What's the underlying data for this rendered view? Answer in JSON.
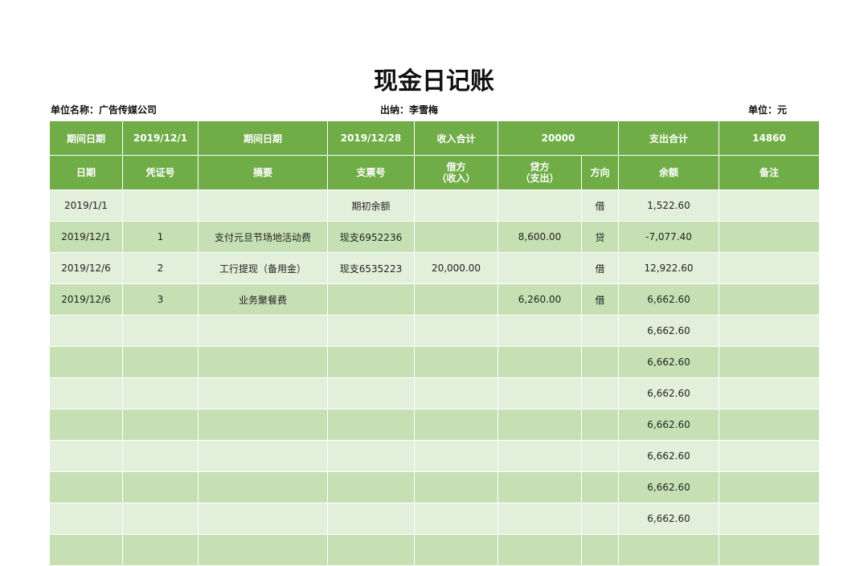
{
  "title": "现金日记账",
  "meta": {
    "company": "单位名称：广告传媒公司",
    "cashier": "出纳：李雪梅",
    "unit": "单位：元"
  },
  "summary": {
    "period_label_1": "期间日期",
    "period_start": "2019/12/1",
    "period_label_2": "期间日期",
    "period_end": "2019/12/28",
    "income_label": "收入合计",
    "income_total": "20000",
    "expense_label": "支出合计",
    "expense_total": "14860"
  },
  "columns": {
    "date": "日期",
    "voucher": "凭证号",
    "summary": "摘要",
    "cheque": "支票号",
    "debit": "借方",
    "debit_sub": "（收入）",
    "credit": "贷方",
    "credit_sub": "（支出）",
    "direction": "方向",
    "balance": "余额",
    "remark": "备注"
  },
  "colors": {
    "header": "#70ad47",
    "row_light": "#e2efda",
    "row_dark": "#c6e0b4"
  },
  "rows": [
    [
      "2019/1/1",
      "",
      "",
      "期初余额",
      "",
      "",
      "借",
      "1,522.60",
      ""
    ],
    [
      "2019/12/1",
      "1",
      "支付元旦节场地活动费",
      "现支6952236",
      "",
      "8,600.00",
      "贷",
      "-7,077.40",
      ""
    ],
    [
      "2019/12/6",
      "2",
      "工行提现（备用金）",
      "现支6535223",
      "20,000.00",
      "",
      "借",
      "12,922.60",
      ""
    ],
    [
      "2019/12/6",
      "3",
      "业务聚餐费",
      "",
      "",
      "6,260.00",
      "借",
      "6,662.60",
      ""
    ],
    [
      "",
      "",
      "",
      "",
      "",
      "",
      "",
      "6,662.60",
      ""
    ],
    [
      "",
      "",
      "",
      "",
      "",
      "",
      "",
      "6,662.60",
      ""
    ],
    [
      "",
      "",
      "",
      "",
      "",
      "",
      "",
      "6,662.60",
      ""
    ],
    [
      "",
      "",
      "",
      "",
      "",
      "",
      "",
      "6,662.60",
      ""
    ],
    [
      "",
      "",
      "",
      "",
      "",
      "",
      "",
      "6,662.60",
      ""
    ],
    [
      "",
      "",
      "",
      "",
      "",
      "",
      "",
      "6,662.60",
      ""
    ],
    [
      "",
      "",
      "",
      "",
      "",
      "",
      "",
      "6,662.60",
      ""
    ],
    [
      "",
      "",
      "",
      "",
      "",
      "",
      "",
      "",
      ""
    ]
  ]
}
